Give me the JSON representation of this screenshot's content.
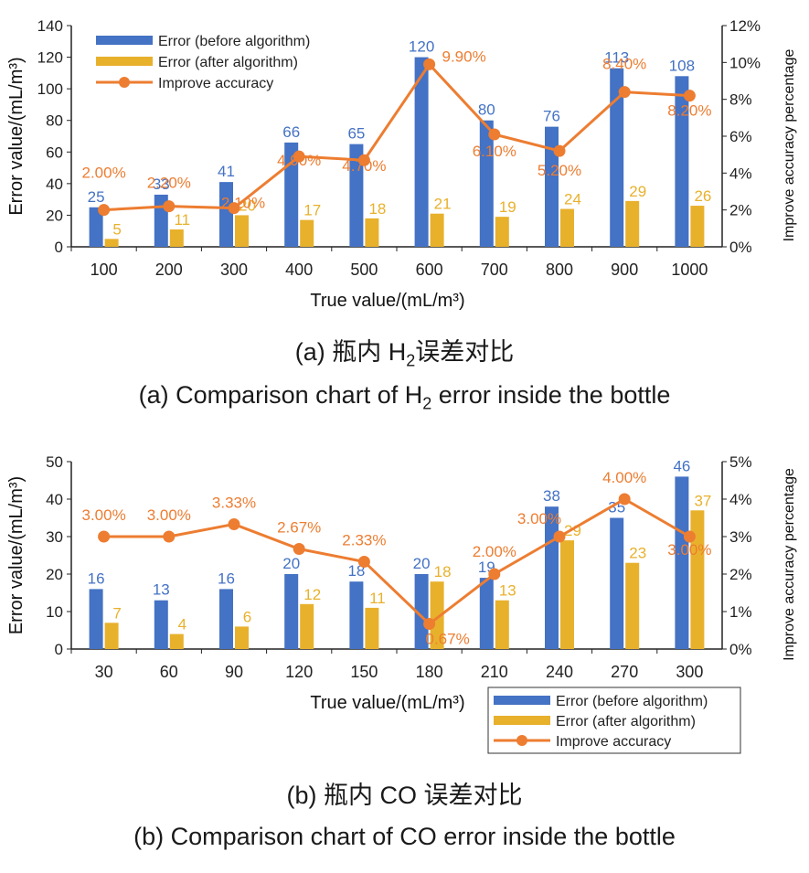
{
  "colors": {
    "before": "#4472C4",
    "after": "#E8B12C",
    "line": "#ED7D31",
    "axis": "#222222"
  },
  "chart_data": [
    {
      "id": "h2",
      "type": "bar",
      "categories": [
        "100",
        "200",
        "300",
        "400",
        "500",
        "600",
        "700",
        "800",
        "900",
        "1000"
      ],
      "series": [
        {
          "name": "Error (before algorithm)",
          "kind": "bar",
          "values": [
            25,
            33,
            41,
            66,
            65,
            120,
            80,
            76,
            113,
            108
          ]
        },
        {
          "name": "Error (after algorithm)",
          "kind": "bar",
          "values": [
            5,
            11,
            20,
            17,
            18,
            21,
            19,
            24,
            29,
            26
          ]
        },
        {
          "name": "Improve accuracy",
          "kind": "line",
          "axis": "right",
          "values": [
            2.0,
            2.2,
            2.1,
            4.9,
            4.7,
            9.9,
            6.1,
            5.2,
            8.4,
            8.2
          ],
          "labels": [
            "2.00%",
            "2.20%",
            "2.10%",
            "4.90%",
            "4.70%",
            "9.90%",
            "6.10%",
            "5.20%",
            "8.40%",
            "8.20%"
          ]
        }
      ],
      "xlabel": "True value/(mL/m³)",
      "ylabel": "Error value/(mL/m³)",
      "y2label": "Improve accuracy percentage",
      "ylim": [
        0,
        140
      ],
      "yticks": [
        0,
        20,
        40,
        60,
        80,
        100,
        120,
        140
      ],
      "y2lim": [
        0,
        12
      ],
      "y2ticks": [
        "0%",
        "2%",
        "4%",
        "6%",
        "8%",
        "10%",
        "12%"
      ],
      "legend_position": "top-left"
    },
    {
      "id": "co",
      "type": "bar",
      "categories": [
        "30",
        "60",
        "90",
        "120",
        "150",
        "180",
        "210",
        "240",
        "270",
        "300"
      ],
      "series": [
        {
          "name": "Error (before algorithm)",
          "kind": "bar",
          "values": [
            16,
            13,
            16,
            20,
            18,
            20,
            19,
            38,
            35,
            46
          ]
        },
        {
          "name": "Error (after algorithm)",
          "kind": "bar",
          "values": [
            7,
            4,
            6,
            12,
            11,
            18,
            13,
            29,
            23,
            37
          ]
        },
        {
          "name": "Improve accuracy",
          "kind": "line",
          "axis": "right",
          "values": [
            3.0,
            3.0,
            3.33,
            2.67,
            2.33,
            0.67,
            2.0,
            3.0,
            4.0,
            3.0
          ],
          "labels": [
            "3.00%",
            "3.00%",
            "3.33%",
            "2.67%",
            "2.33%",
            "0.67%",
            "2.00%",
            "3.00%",
            "4.00%",
            "3.00%"
          ]
        }
      ],
      "xlabel": "True value/(mL/m³)",
      "ylabel": "Error value/(mL/m³)",
      "y2label": "Improve accuracy percentage",
      "ylim": [
        0,
        50
      ],
      "yticks": [
        0,
        10,
        20,
        30,
        40,
        50
      ],
      "y2lim": [
        0,
        5
      ],
      "y2ticks": [
        "0%",
        "1%",
        "2%",
        "3%",
        "4%",
        "5%"
      ],
      "legend_position": "bottom-right"
    }
  ],
  "captions": {
    "h2_cn_pre": "(a) 瓶内 H",
    "h2_cn_sub": "2",
    "h2_cn_post": "误差对比",
    "h2_en_pre": "(a) Comparison chart of H",
    "h2_en_sub": "2",
    "h2_en_post": " error inside the bottle",
    "co_cn": "(b) 瓶内 CO 误差对比",
    "co_en": "(b) Comparison chart of CO error inside the bottle"
  }
}
